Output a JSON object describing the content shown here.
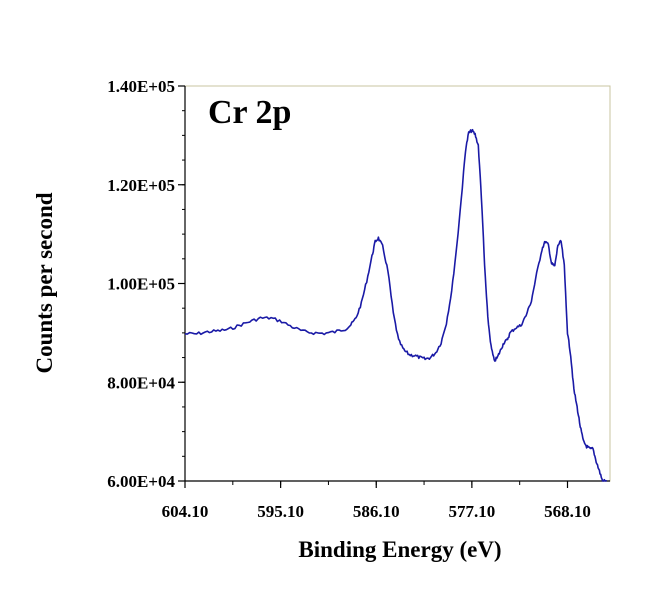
{
  "chart_data": {
    "type": "line",
    "title": "",
    "annotation": "Cr 2p",
    "xlabel": "Binding Energy (eV)",
    "ylabel": "Counts per second",
    "x_reversed": true,
    "xlim": [
      564.1,
      604.1
    ],
    "ylim": [
      60000,
      140000
    ],
    "x_ticks": [
      604.1,
      595.1,
      586.1,
      577.1,
      568.1
    ],
    "x_tick_labels": [
      "604.10",
      "595.10",
      "586.10",
      "577.10",
      "568.10"
    ],
    "x_minor_step": 4.5,
    "y_ticks": [
      60000,
      80000,
      100000,
      120000,
      140000
    ],
    "y_tick_labels": [
      "6.00E+04",
      "8.00E+04",
      "1.00E+05",
      "1.20E+05",
      "1.40E+05"
    ],
    "y_minor_step": 5000,
    "grid": false,
    "legend": "none",
    "colors": {
      "line": "#1a1aa6",
      "frame": "#c8c4a0",
      "axis": "#000000"
    },
    "series": [
      {
        "x": [
          604.1,
          603.0,
          602.0,
          601.0,
          600.0,
          599.0,
          598.0,
          597.0,
          596.0,
          595.0,
          594.0,
          593.0,
          592.0,
          591.0,
          590.0,
          589.0,
          588.5,
          588.0,
          587.5,
          587.0,
          586.5,
          586.2,
          585.9,
          585.5,
          585.0,
          584.5,
          584.0,
          583.5,
          583.0,
          582.5,
          582.0,
          581.5,
          581.0,
          580.5,
          580.0,
          579.5,
          579.0,
          578.5,
          578.0,
          577.7,
          577.4,
          577.1,
          576.8,
          576.5,
          576.2,
          575.9,
          575.6,
          575.3,
          575.0,
          574.7,
          574.4,
          574.1,
          573.8,
          573.5,
          573.0,
          572.5,
          572.0,
          571.5,
          571.0,
          570.5,
          570.2,
          569.9,
          569.6,
          569.3,
          569.0,
          568.7,
          568.4,
          568.1,
          567.8,
          567.5,
          567.2,
          566.9,
          566.6,
          566.3,
          566.0,
          565.7,
          565.4,
          565.1,
          564.8,
          564.4
        ],
        "y": [
          89800,
          89800,
          90200,
          90400,
          90700,
          91500,
          92300,
          93000,
          93000,
          92300,
          91200,
          90300,
          90000,
          89900,
          90200,
          90800,
          91600,
          93000,
          96000,
          100500,
          105500,
          108500,
          109200,
          107500,
          102500,
          94000,
          88500,
          86500,
          85600,
          85400,
          85000,
          84700,
          85000,
          86000,
          88000,
          92000,
          98500,
          108000,
          119500,
          127000,
          130500,
          131000,
          130200,
          128000,
          117500,
          103500,
          93000,
          87300,
          84300,
          85000,
          86500,
          88000,
          88500,
          90000,
          91000,
          91500,
          93500,
          96500,
          102000,
          107000,
          108500,
          107800,
          104000,
          103500,
          107800,
          108500,
          103500,
          90000,
          85500,
          78500,
          75000,
          71000,
          68000,
          67000,
          66500,
          66500,
          64000,
          62000,
          60000,
          60000
        ]
      }
    ]
  }
}
